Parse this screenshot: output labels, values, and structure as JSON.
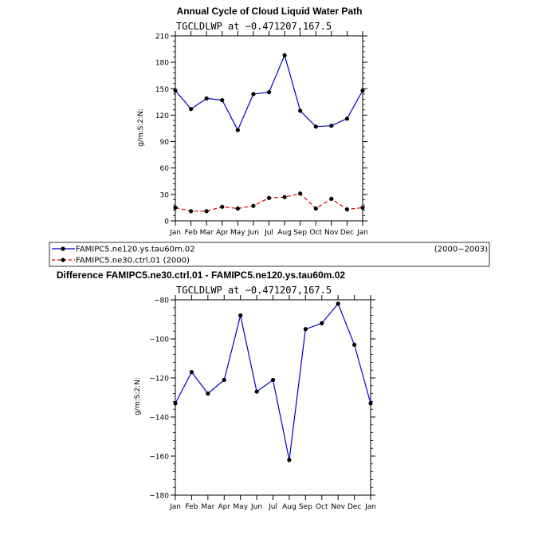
{
  "chart_data": [
    {
      "type": "line",
      "title": "Annual Cycle of Cloud Liquid Water Path",
      "subtitle": "TGCLDLWP at −0.471207,167.5",
      "xlabel": "",
      "ylabel": "g/m:S:2:N:",
      "ylim": [
        0,
        210
      ],
      "yticks": [
        "0",
        "30",
        "60",
        "90",
        "120",
        "150",
        "180",
        "210"
      ],
      "categories": [
        "Jan",
        "Feb",
        "Mar",
        "Apr",
        "May",
        "Jun",
        "Jul",
        "Aug",
        "Sep",
        "Oct",
        "Nov",
        "Dec",
        "Jan"
      ],
      "series": [
        {
          "name": "FAMIPC5.ne120.ys.tau60m.02",
          "period": "(2000−2003)",
          "color": "#0000cc",
          "dash": "solid",
          "values": [
            148,
            127,
            139,
            137,
            103,
            144,
            146,
            188,
            125,
            107,
            108,
            116,
            148
          ]
        },
        {
          "name": "FAMIPC5.ne30.ctrl.01",
          "period": "(2000)",
          "color": "#e00000",
          "dash": "dashed",
          "values": [
            15,
            11,
            11,
            16,
            14,
            17,
            26,
            27,
            31,
            14,
            25,
            13,
            15
          ]
        }
      ],
      "legend_position": "bottom"
    },
    {
      "type": "line",
      "title": "Difference FAMIPC5.ne30.ctrl.01 - FAMIPC5.ne120.ys.tau60m.02",
      "subtitle": "TGCLDLWP at −0.471207,167.5",
      "xlabel": "",
      "ylabel": "g/m:S:2:N:",
      "ylim": [
        -180,
        -80
      ],
      "yticks": [
        "−180",
        "−160",
        "−140",
        "−120",
        "−100",
        "−80"
      ],
      "categories": [
        "Jan",
        "Feb",
        "Mar",
        "Apr",
        "May",
        "Jun",
        "Jul",
        "Aug",
        "Sep",
        "Oct",
        "Nov",
        "Dec",
        "Jan"
      ],
      "series": [
        {
          "name": "Difference",
          "color": "#0000cc",
          "dash": "solid",
          "values": [
            -133,
            -117,
            -128,
            -121,
            -88,
            -127,
            -121,
            -162,
            -95,
            -92,
            -82,
            -103,
            -133
          ]
        }
      ]
    }
  ]
}
